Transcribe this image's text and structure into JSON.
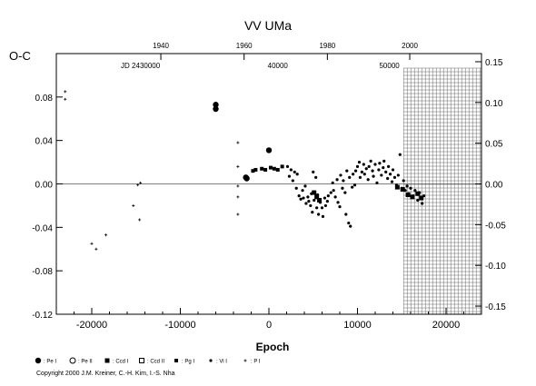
{
  "chart_data": {
    "type": "scatter",
    "title": "VV UMa",
    "ylabel": "O-C",
    "xlabel": "Epoch",
    "xlim": [
      -24000,
      24000
    ],
    "ylim": [
      -0.12,
      0.12
    ],
    "right_ylim": [
      -0.16,
      0.16
    ],
    "x_ticks": [
      -20000,
      -10000,
      0,
      10000,
      20000
    ],
    "x_tick_labels": [
      "-20000",
      "-10000",
      "0",
      "10000",
      "20000"
    ],
    "y_ticks": [
      -0.12,
      -0.08,
      -0.04,
      0.0,
      0.04,
      0.08
    ],
    "y_tick_labels": [
      "-0.12",
      "-0.08",
      "-0.04",
      "0.00",
      "0.04",
      "0.08"
    ],
    "right_ticks": [
      -0.15,
      -0.1,
      -0.05,
      0.0,
      0.05,
      0.1,
      0.15
    ],
    "right_tick_labels": [
      "-0.15",
      "-0.10",
      "-0.05",
      "0.00",
      "0.05",
      "0.10",
      "0.15"
    ],
    "top_year_labels": [
      {
        "epoch": -12200,
        "label": "1940"
      },
      {
        "epoch": -2800,
        "label": "1960"
      },
      {
        "epoch": 6600,
        "label": "1980"
      },
      {
        "epoch": 15900,
        "label": "2000"
      }
    ],
    "top_jd_labels": [
      {
        "epoch": -14500,
        "label": "JD 2430000"
      },
      {
        "epoch": 1000,
        "label": "40000"
      },
      {
        "epoch": 13600,
        "label": "50000"
      }
    ],
    "future_hatch_start": 15200,
    "legend": [
      {
        "marker": "large-filled-circle",
        "label": ": Pe I"
      },
      {
        "marker": "open-circle",
        "label": ": Pe II"
      },
      {
        "marker": "filled-square",
        "label": ": Ccd I"
      },
      {
        "marker": "open-square",
        "label": ": Ccd II"
      },
      {
        "marker": "small-filled-square",
        "label": ": Pg I"
      },
      {
        "marker": "small-filled-circle",
        "label": ": Vi I"
      },
      {
        "marker": "plus",
        "label": ": P I"
      }
    ],
    "series": [
      {
        "kind": "plus",
        "points": [
          [
            -20000,
            -0.055
          ],
          [
            -19500,
            -0.06
          ],
          [
            -18400,
            -0.047
          ],
          [
            -15300,
            -0.02
          ],
          [
            -14800,
            -0.001
          ],
          [
            -14500,
            0.001
          ],
          [
            -14600,
            -0.033
          ],
          [
            -23000,
            0.085
          ],
          [
            -23000,
            0.078
          ],
          [
            -3500,
            0.038
          ],
          [
            -3500,
            0.016
          ],
          [
            -3500,
            -0.002
          ],
          [
            -3500,
            -0.012
          ],
          [
            -3500,
            -0.028
          ]
        ]
      },
      {
        "kind": "large-filled-circle",
        "points": [
          [
            -6000,
            0.073
          ],
          [
            -6000,
            0.069
          ],
          [
            -2600,
            0.006
          ],
          [
            -2500,
            0.005
          ],
          [
            0,
            0.031
          ]
        ]
      },
      {
        "kind": "small-filled-square",
        "points": [
          [
            -1800,
            0.012
          ],
          [
            -1500,
            0.013
          ],
          [
            -800,
            0.014
          ],
          [
            -400,
            0.013
          ],
          [
            200,
            0.015
          ],
          [
            600,
            0.014
          ],
          [
            1000,
            0.013
          ],
          [
            1500,
            0.016
          ]
        ]
      },
      {
        "kind": "filled-square",
        "points": [
          [
            5100,
            -0.008
          ],
          [
            5400,
            -0.012
          ],
          [
            5700,
            -0.015
          ],
          [
            14500,
            -0.003
          ],
          [
            15100,
            -0.005
          ],
          [
            15700,
            -0.01
          ],
          [
            16200,
            -0.012
          ],
          [
            16800,
            -0.009
          ],
          [
            17200,
            -0.013
          ]
        ]
      },
      {
        "kind": "small-filled-circle",
        "points": [
          [
            2100,
            0.016
          ],
          [
            2300,
            0.007
          ],
          [
            2500,
            0.013
          ],
          [
            2700,
            0.003
          ],
          [
            2900,
            0.011
          ],
          [
            3100,
            -0.004
          ],
          [
            3200,
            0.009
          ],
          [
            3400,
            -0.011
          ],
          [
            3600,
            -0.014
          ],
          [
            3800,
            -0.006
          ],
          [
            3900,
            -0.013
          ],
          [
            4100,
            -0.002
          ],
          [
            4200,
            -0.018
          ],
          [
            4400,
            -0.012
          ],
          [
            4500,
            -0.016
          ],
          [
            4700,
            -0.02
          ],
          [
            4800,
            -0.009
          ],
          [
            4900,
            -0.026
          ],
          [
            5000,
            0.011
          ],
          [
            5100,
            -0.015
          ],
          [
            5300,
            0.006
          ],
          [
            5400,
            -0.022
          ],
          [
            5500,
            -0.01
          ],
          [
            5600,
            -0.028
          ],
          [
            5800,
            -0.017
          ],
          [
            6000,
            -0.022
          ],
          [
            6100,
            -0.03
          ],
          [
            6300,
            -0.013
          ],
          [
            6400,
            -0.02
          ],
          [
            6600,
            -0.016
          ],
          [
            6700,
            -0.011
          ],
          [
            7000,
            -0.008
          ],
          [
            7200,
            0.001
          ],
          [
            7300,
            -0.006
          ],
          [
            7500,
            -0.012
          ],
          [
            7700,
            0.004
          ],
          [
            7800,
            -0.017
          ],
          [
            8000,
            -0.021
          ],
          [
            8100,
            0.008
          ],
          [
            8300,
            -0.004
          ],
          [
            8400,
            0.003
          ],
          [
            8600,
            -0.008
          ],
          [
            8700,
            -0.028
          ],
          [
            8800,
            0.012
          ],
          [
            9000,
            -0.036
          ],
          [
            9100,
            0.006
          ],
          [
            9200,
            -0.039
          ],
          [
            9400,
            -0.003
          ],
          [
            9500,
            0.009
          ],
          [
            9700,
            -0.001
          ],
          [
            9800,
            0.012
          ],
          [
            10000,
            0.016
          ],
          [
            10200,
            0.02
          ],
          [
            10300,
            0.006
          ],
          [
            10500,
            0.011
          ],
          [
            10700,
            0.018
          ],
          [
            10800,
            0.009
          ],
          [
            11000,
            0.014
          ],
          [
            11200,
            0.004
          ],
          [
            11300,
            0.016
          ],
          [
            11500,
            0.021
          ],
          [
            11700,
            0.012
          ],
          [
            11800,
            0.007
          ],
          [
            12000,
            0.018
          ],
          [
            12200,
            0.001
          ],
          [
            12400,
            0.013
          ],
          [
            12500,
            0.019
          ],
          [
            12700,
            0.008
          ],
          [
            12900,
            0.015
          ],
          [
            13000,
            0.021
          ],
          [
            13200,
            0.011
          ],
          [
            13400,
            0.005
          ],
          [
            13500,
            0.016
          ],
          [
            13700,
            0.009
          ],
          [
            13900,
            0.002
          ],
          [
            14000,
            0.013
          ],
          [
            14200,
            0.006
          ],
          [
            14400,
            -0.001
          ],
          [
            14600,
            0.008
          ],
          [
            14800,
            0.027
          ],
          [
            15000,
            -0.004
          ],
          [
            15200,
            0.003
          ],
          [
            15400,
            -0.006
          ],
          [
            15600,
            -0.002
          ],
          [
            15800,
            -0.009
          ],
          [
            16000,
            -0.004
          ],
          [
            16300,
            -0.011
          ],
          [
            16500,
            -0.006
          ],
          [
            16800,
            -0.015
          ],
          [
            17000,
            -0.008
          ],
          [
            17300,
            -0.018
          ],
          [
            17500,
            -0.011
          ]
        ]
      }
    ]
  },
  "copyright": "Copyright 2000 J.M. Kreiner, C.-H. Kim, I.-S. Nha"
}
